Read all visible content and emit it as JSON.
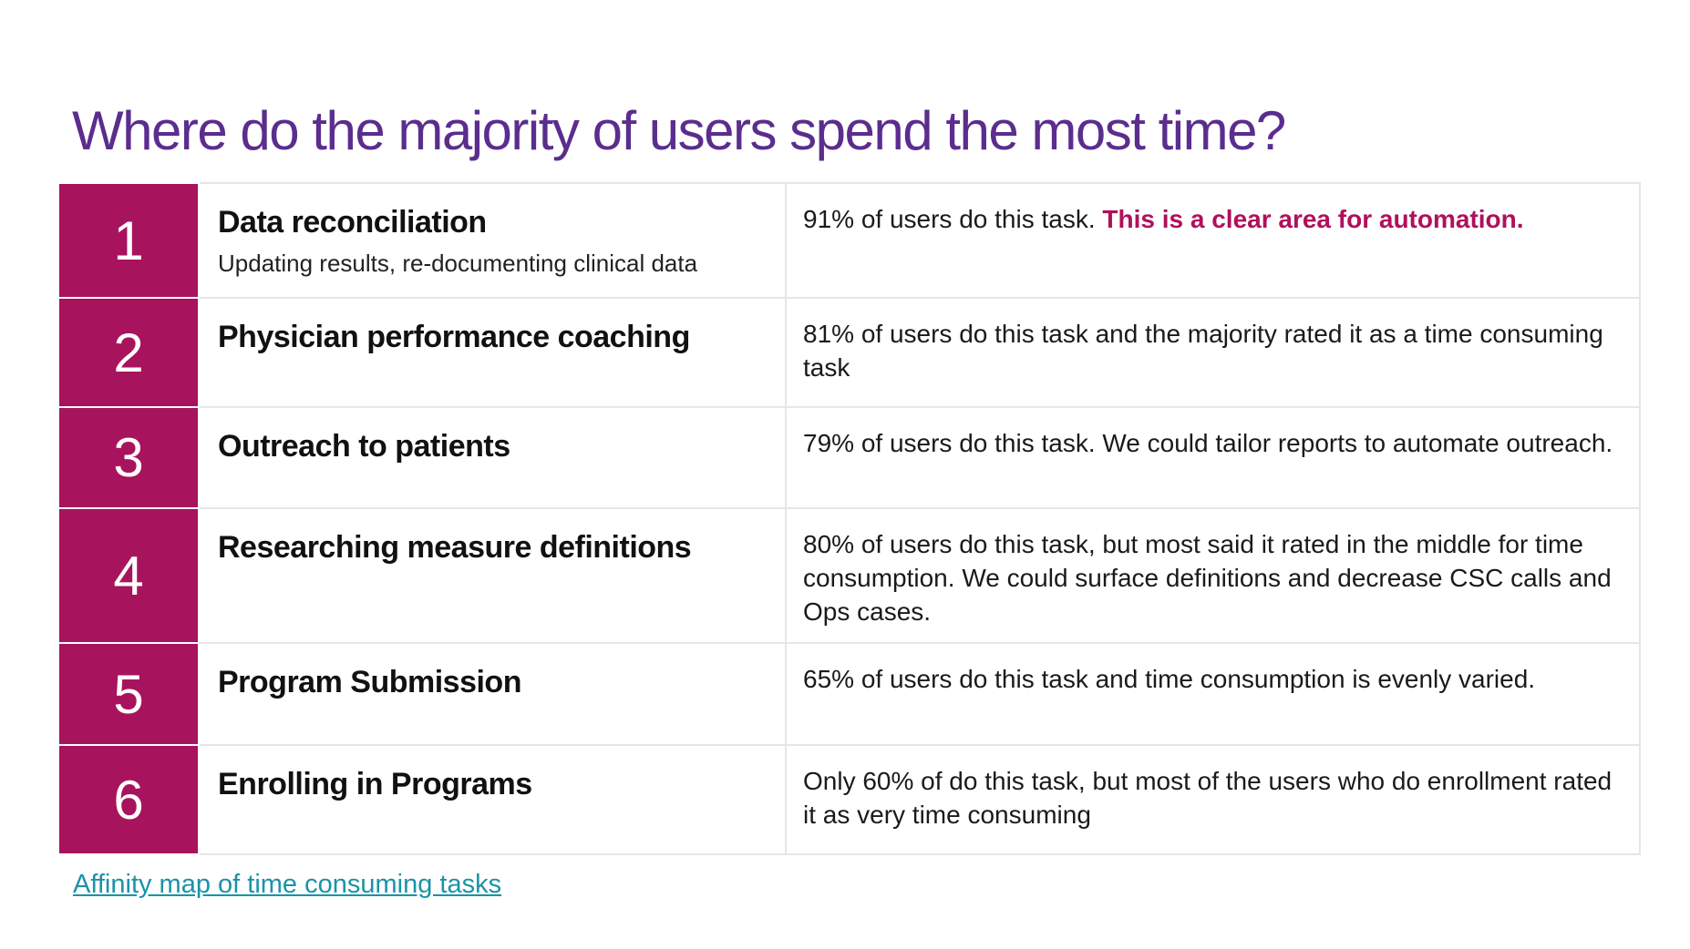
{
  "title": "Where do the majority of users spend the most time?",
  "rows": [
    {
      "rank": "1",
      "task": "Data reconciliation",
      "subtitle": "Updating results, re-documenting clinical data",
      "description": "91% of users do this task. ",
      "highlight": "This is a clear area for automation.",
      "height": 126
    },
    {
      "rank": "2",
      "task": "Physician performance coaching",
      "subtitle": "",
      "description": "81% of users do this task and the majority rated it as a time consuming task",
      "highlight": "",
      "height": 120
    },
    {
      "rank": "3",
      "task": "Outreach to patients",
      "subtitle": "",
      "description": "79% of users do this task. We could tailor reports to automate outreach.",
      "highlight": "",
      "height": 111
    },
    {
      "rank": "4",
      "task": "Researching measure definitions",
      "subtitle": "",
      "description": "80% of users do this task, but most said it rated in the middle for time consumption. We could surface definitions and decrease CSC calls and Ops cases.",
      "highlight": "",
      "height": 148
    },
    {
      "rank": "5",
      "task": "Program Submission",
      "subtitle": "",
      "description": "65% of users do this task and time consumption is evenly varied.",
      "highlight": "",
      "height": 112
    },
    {
      "rank": "6",
      "task": "Enrolling in Programs",
      "subtitle": "",
      "description": "Only 60% of do this task, but most of the users who do enrollment rated it as very time consuming",
      "highlight": "",
      "height": 120
    }
  ],
  "footer_link": "Affinity map of time consuming tasks",
  "colors": {
    "title": "#5b2d8e",
    "rank_background": "#a8135d",
    "highlight": "#b0105c",
    "link": "#1a93a8"
  }
}
